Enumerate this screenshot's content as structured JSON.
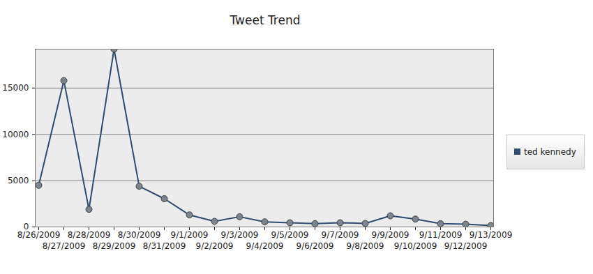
{
  "chart_data": {
    "type": "line",
    "title": "Tweet Trend",
    "categories": [
      "8/26/2009",
      "8/27/2009",
      "8/28/2009",
      "8/29/2009",
      "8/30/2009",
      "8/31/2009",
      "9/1/2009",
      "9/2/2009",
      "9/3/2009",
      "9/4/2009",
      "9/5/2009",
      "9/6/2009",
      "9/7/2009",
      "9/8/2009",
      "9/9/2009",
      "9/10/2009",
      "9/11/2009",
      "9/12/2009",
      "9/13/2009"
    ],
    "series": [
      {
        "name": "ted kennedy",
        "color": "#2f4b6e",
        "marker": "circle",
        "values": [
          4500,
          15800,
          1900,
          19200,
          4400,
          3050,
          1300,
          600,
          1100,
          550,
          450,
          350,
          450,
          380,
          1200,
          850,
          350,
          300,
          150
        ]
      }
    ],
    "ylim": [
      0,
      19200
    ],
    "yticks": [
      0,
      5000,
      10000,
      15000
    ],
    "grid": true,
    "legend": "right"
  }
}
